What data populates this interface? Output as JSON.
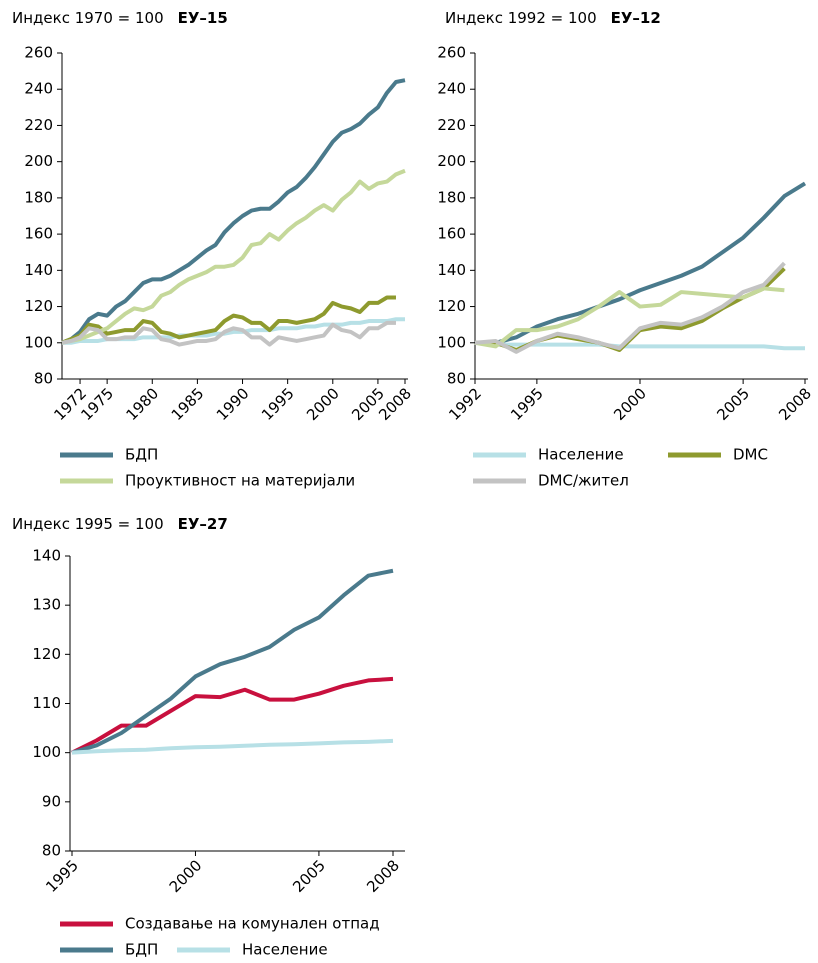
{
  "chart_data": [
    {
      "type": "line",
      "index_label": "Индекс 1970 = 100",
      "region": "ЕУ–15",
      "x": [
        1970,
        1971,
        1972,
        1973,
        1974,
        1975,
        1976,
        1977,
        1978,
        1979,
        1980,
        1981,
        1982,
        1983,
        1984,
        1985,
        1986,
        1987,
        1988,
        1989,
        1990,
        1991,
        1992,
        1993,
        1994,
        1995,
        1996,
        1997,
        1998,
        1999,
        2000,
        2001,
        2002,
        2003,
        2004,
        2005,
        2006,
        2007,
        2008
      ],
      "xlim": [
        1970,
        2008
      ],
      "xticks": [
        1972,
        1975,
        1980,
        1985,
        1990,
        1995,
        2000,
        2005,
        2008
      ],
      "ylim": [
        80,
        260
      ],
      "yticks": [
        80,
        100,
        120,
        140,
        160,
        180,
        200,
        220,
        240,
        260
      ],
      "series": [
        {
          "name": "БДП",
          "color": "#4a7a8c",
          "values": [
            100,
            102,
            106,
            113,
            116,
            115,
            120,
            123,
            128,
            133,
            135,
            135,
            137,
            140,
            143,
            147,
            151,
            154,
            161,
            166,
            170,
            173,
            174,
            174,
            178,
            183,
            186,
            191,
            197,
            204,
            211,
            216,
            218,
            221,
            226,
            230,
            238,
            244,
            245
          ]
        },
        {
          "name": "Население",
          "color": "#b7e0e6",
          "values": [
            100,
            100,
            101,
            101,
            101,
            102,
            102,
            102,
            102,
            103,
            103,
            103,
            103,
            104,
            104,
            104,
            104,
            105,
            105,
            106,
            106,
            107,
            107,
            107,
            108,
            108,
            108,
            109,
            109,
            110,
            110,
            110,
            111,
            111,
            112,
            112,
            112,
            113,
            113
          ]
        },
        {
          "name": "DMC",
          "color": "#8e9a2e",
          "values": [
            100,
            102,
            104,
            110,
            109,
            105,
            106,
            107,
            107,
            112,
            111,
            106,
            105,
            103,
            104,
            105,
            106,
            107,
            112,
            115,
            114,
            111,
            111,
            107,
            112,
            112,
            111,
            112,
            113,
            116,
            122,
            120,
            119,
            117,
            122,
            122,
            125,
            125,
            null
          ]
        },
        {
          "name": "Проуктивност на материјали",
          "color": "#c5d89a",
          "values": [
            100,
            101,
            102,
            104,
            106,
            108,
            112,
            116,
            119,
            118,
            120,
            126,
            128,
            132,
            135,
            137,
            139,
            142,
            142,
            143,
            147,
            154,
            155,
            160,
            157,
            162,
            166,
            169,
            173,
            176,
            173,
            179,
            183,
            189,
            185,
            188,
            189,
            193,
            195
          ]
        },
        {
          "name": "DMC/жител",
          "color": "#c3c3c3",
          "values": [
            100,
            101,
            103,
            108,
            107,
            102,
            102,
            103,
            103,
            108,
            107,
            102,
            101,
            99,
            100,
            101,
            101,
            102,
            106,
            108,
            107,
            103,
            103,
            99,
            103,
            102,
            101,
            102,
            103,
            104,
            110,
            107,
            106,
            103,
            108,
            108,
            111,
            111,
            null
          ]
        }
      ]
    },
    {
      "type": "line",
      "index_label": "Индекс 1992 = 100",
      "region": "ЕУ–12",
      "x": [
        1992,
        1993,
        1994,
        1995,
        1996,
        1997,
        1998,
        1999,
        2000,
        2001,
        2002,
        2003,
        2004,
        2005,
        2006,
        2007,
        2008
      ],
      "xlim": [
        1992,
        2008
      ],
      "xticks": [
        1992,
        1995,
        2000,
        2005,
        2008
      ],
      "ylim": [
        80,
        260
      ],
      "yticks": [
        80,
        100,
        120,
        140,
        160,
        180,
        200,
        220,
        240,
        260
      ],
      "series": [
        {
          "color": "#4a7a8c",
          "values": [
            100,
            100,
            103,
            109,
            113,
            116,
            120,
            124,
            129,
            133,
            137,
            142,
            150,
            158,
            169,
            181,
            188
          ]
        },
        {
          "color": "#b7e0e6",
          "values": [
            100,
            99,
            99,
            99,
            99,
            99,
            99,
            98,
            98,
            98,
            98,
            98,
            98,
            98,
            98,
            97,
            97
          ]
        },
        {
          "color": "#8e9a2e",
          "values": [
            100,
            100,
            96,
            101,
            104,
            102,
            100,
            96,
            107,
            109,
            108,
            112,
            119,
            125,
            130,
            141,
            null
          ]
        },
        {
          "color": "#c5d89a",
          "values": [
            100,
            98,
            107,
            107,
            109,
            113,
            120,
            128,
            120,
            121,
            128,
            127,
            126,
            125,
            130,
            129,
            null
          ]
        },
        {
          "color": "#c3c3c3",
          "values": [
            100,
            101,
            95,
            101,
            105,
            103,
            100,
            97,
            108,
            111,
            110,
            114,
            120,
            128,
            132,
            144,
            null
          ]
        }
      ]
    },
    {
      "type": "line",
      "index_label": "Индекс 1995 = 100",
      "region": "ЕУ–27",
      "x": [
        1995,
        1996,
        1997,
        1998,
        1999,
        2000,
        2001,
        2002,
        2003,
        2004,
        2005,
        2006,
        2007,
        2008
      ],
      "xlim": [
        1995,
        2008
      ],
      "xticks": [
        1995,
        2000,
        2005,
        2008
      ],
      "ylim": [
        80,
        140
      ],
      "yticks": [
        80,
        90,
        100,
        110,
        120,
        130,
        140
      ],
      "series": [
        {
          "name": "Создавање на комунален отпад",
          "color": "#c8103e",
          "values": [
            100,
            102.5,
            105.5,
            105.5,
            108.5,
            111.5,
            111.3,
            112.8,
            110.8,
            110.8,
            112,
            113.6,
            114.7,
            115
          ]
        },
        {
          "name": "БДП",
          "color": "#4a7a8c",
          "values": [
            100,
            101.5,
            104,
            107.5,
            111,
            115.5,
            118,
            119.5,
            121.5,
            125,
            127.5,
            132,
            136,
            137
          ]
        },
        {
          "name": "Население",
          "color": "#b7e0e6",
          "values": [
            100,
            100.3,
            100.5,
            100.6,
            100.9,
            101.1,
            101.2,
            101.4,
            101.6,
            101.7,
            101.9,
            102.1,
            102.2,
            102.4
          ]
        }
      ]
    }
  ]
}
